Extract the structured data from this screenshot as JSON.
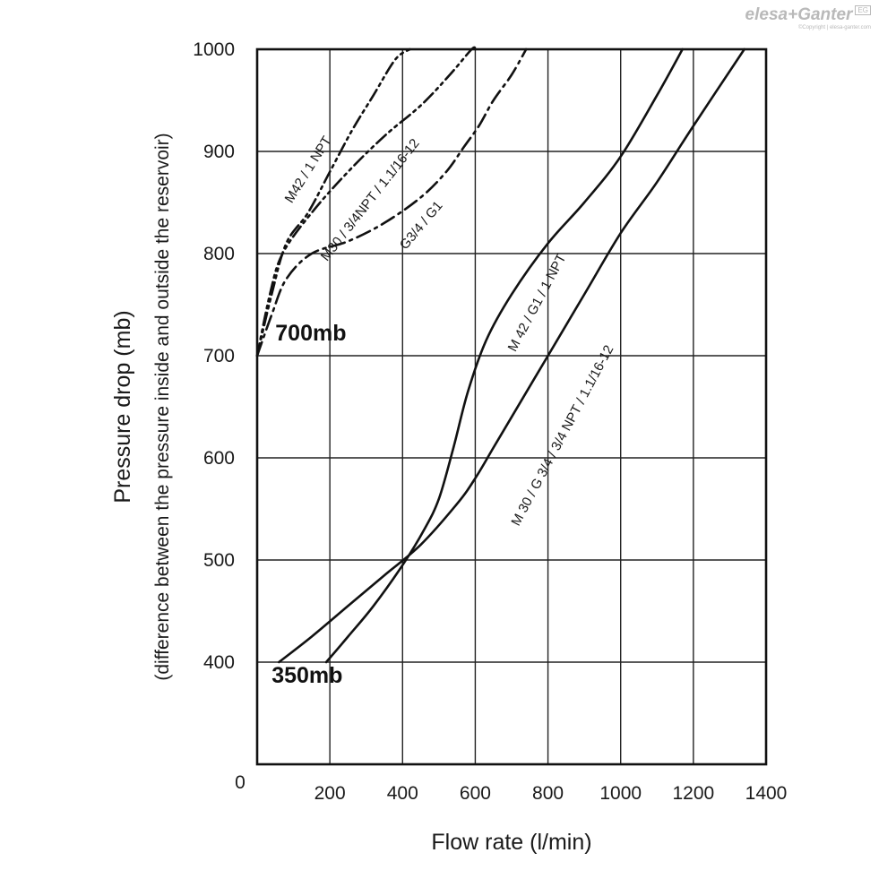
{
  "logo": {
    "name": "elesa+Ganter",
    "badge": "EG",
    "copyright": "©Copyright | elesa-ganter.com"
  },
  "chart_data": {
    "type": "line",
    "title": "",
    "xlabel": "Flow rate (l/min)",
    "ylabel": "Pressure drop (mb)",
    "ylabel_sub": "(difference between the pressure inside and outside the reservoir)",
    "xlim": [
      0,
      1400
    ],
    "ylim": [
      300,
      1000
    ],
    "x_ticks": [
      {
        "value": 200,
        "label": "200"
      },
      {
        "value": 400,
        "label": "400"
      },
      {
        "value": 600,
        "label": "600"
      },
      {
        "value": 800,
        "label": "800"
      },
      {
        "value": 1000,
        "label": "1000"
      },
      {
        "value": 1200,
        "label": "1200"
      },
      {
        "value": 1400,
        "label": "1400"
      }
    ],
    "y_ticks": [
      {
        "value": 400,
        "label": "400"
      },
      {
        "value": 500,
        "label": "500"
      },
      {
        "value": 600,
        "label": "600"
      },
      {
        "value": 700,
        "label": "700"
      },
      {
        "value": 800,
        "label": "800"
      },
      {
        "value": 900,
        "label": "900"
      },
      {
        "value": 1000,
        "label": "1000"
      }
    ],
    "origin_label": "0",
    "grid": true,
    "series": [
      {
        "name": "M42 / 1 NPT",
        "style": "dashdotdot",
        "x": [
          0,
          40,
          80,
          140,
          200,
          260,
          320,
          380,
          420
        ],
        "y": [
          700,
          760,
          810,
          840,
          880,
          920,
          955,
          990,
          1000
        ],
        "label_at": [
          150,
          880
        ],
        "label_angle": -58
      },
      {
        "name": "M30 / 3/4NPT / 1.1/16-12",
        "style": "dashdotdot",
        "x": [
          0,
          35,
          70,
          150,
          250,
          350,
          450,
          530,
          590,
          600
        ],
        "y": [
          700,
          760,
          800,
          840,
          880,
          915,
          945,
          975,
          1000,
          1000
        ],
        "label_at": [
          320,
          850
        ],
        "label_angle": -52
      },
      {
        "name": "G3/4 / G1",
        "style": "dashdot",
        "x": [
          0,
          40,
          80,
          150,
          250,
          350,
          450,
          520,
          570,
          610,
          650,
          700,
          740
        ],
        "y": [
          700,
          740,
          775,
          800,
          812,
          830,
          855,
          880,
          905,
          925,
          950,
          975,
          1000
        ],
        "label_at": [
          460,
          825
        ],
        "label_angle": -50
      },
      {
        "name": "M 42 / G1 / 1 NPT",
        "style": "solid",
        "x": [
          190,
          250,
          320,
          400,
          460,
          500,
          540,
          580,
          630,
          700,
          800,
          900,
          1000,
          1100,
          1170
        ],
        "y": [
          400,
          425,
          455,
          495,
          530,
          560,
          610,
          665,
          715,
          760,
          810,
          850,
          895,
          955,
          1000
        ],
        "label_at": [
          780,
          750
        ],
        "label_angle": -62
      },
      {
        "name": "M 30 / G 3/4 / 3/4 NPT / 1.1/16-12",
        "style": "solid",
        "x": [
          60,
          150,
          250,
          350,
          450,
          550,
          600,
          650,
          700,
          800,
          900,
          1000,
          1100,
          1200,
          1340
        ],
        "y": [
          400,
          425,
          455,
          485,
          515,
          555,
          580,
          610,
          640,
          700,
          760,
          820,
          870,
          925,
          1000
        ],
        "label_at": [
          850,
          620
        ],
        "label_angle": -62
      }
    ],
    "annotations": [
      {
        "text": "700mb",
        "x": 50,
        "y": 715
      },
      {
        "text": "350mb",
        "x": 40,
        "y": 380
      }
    ]
  }
}
